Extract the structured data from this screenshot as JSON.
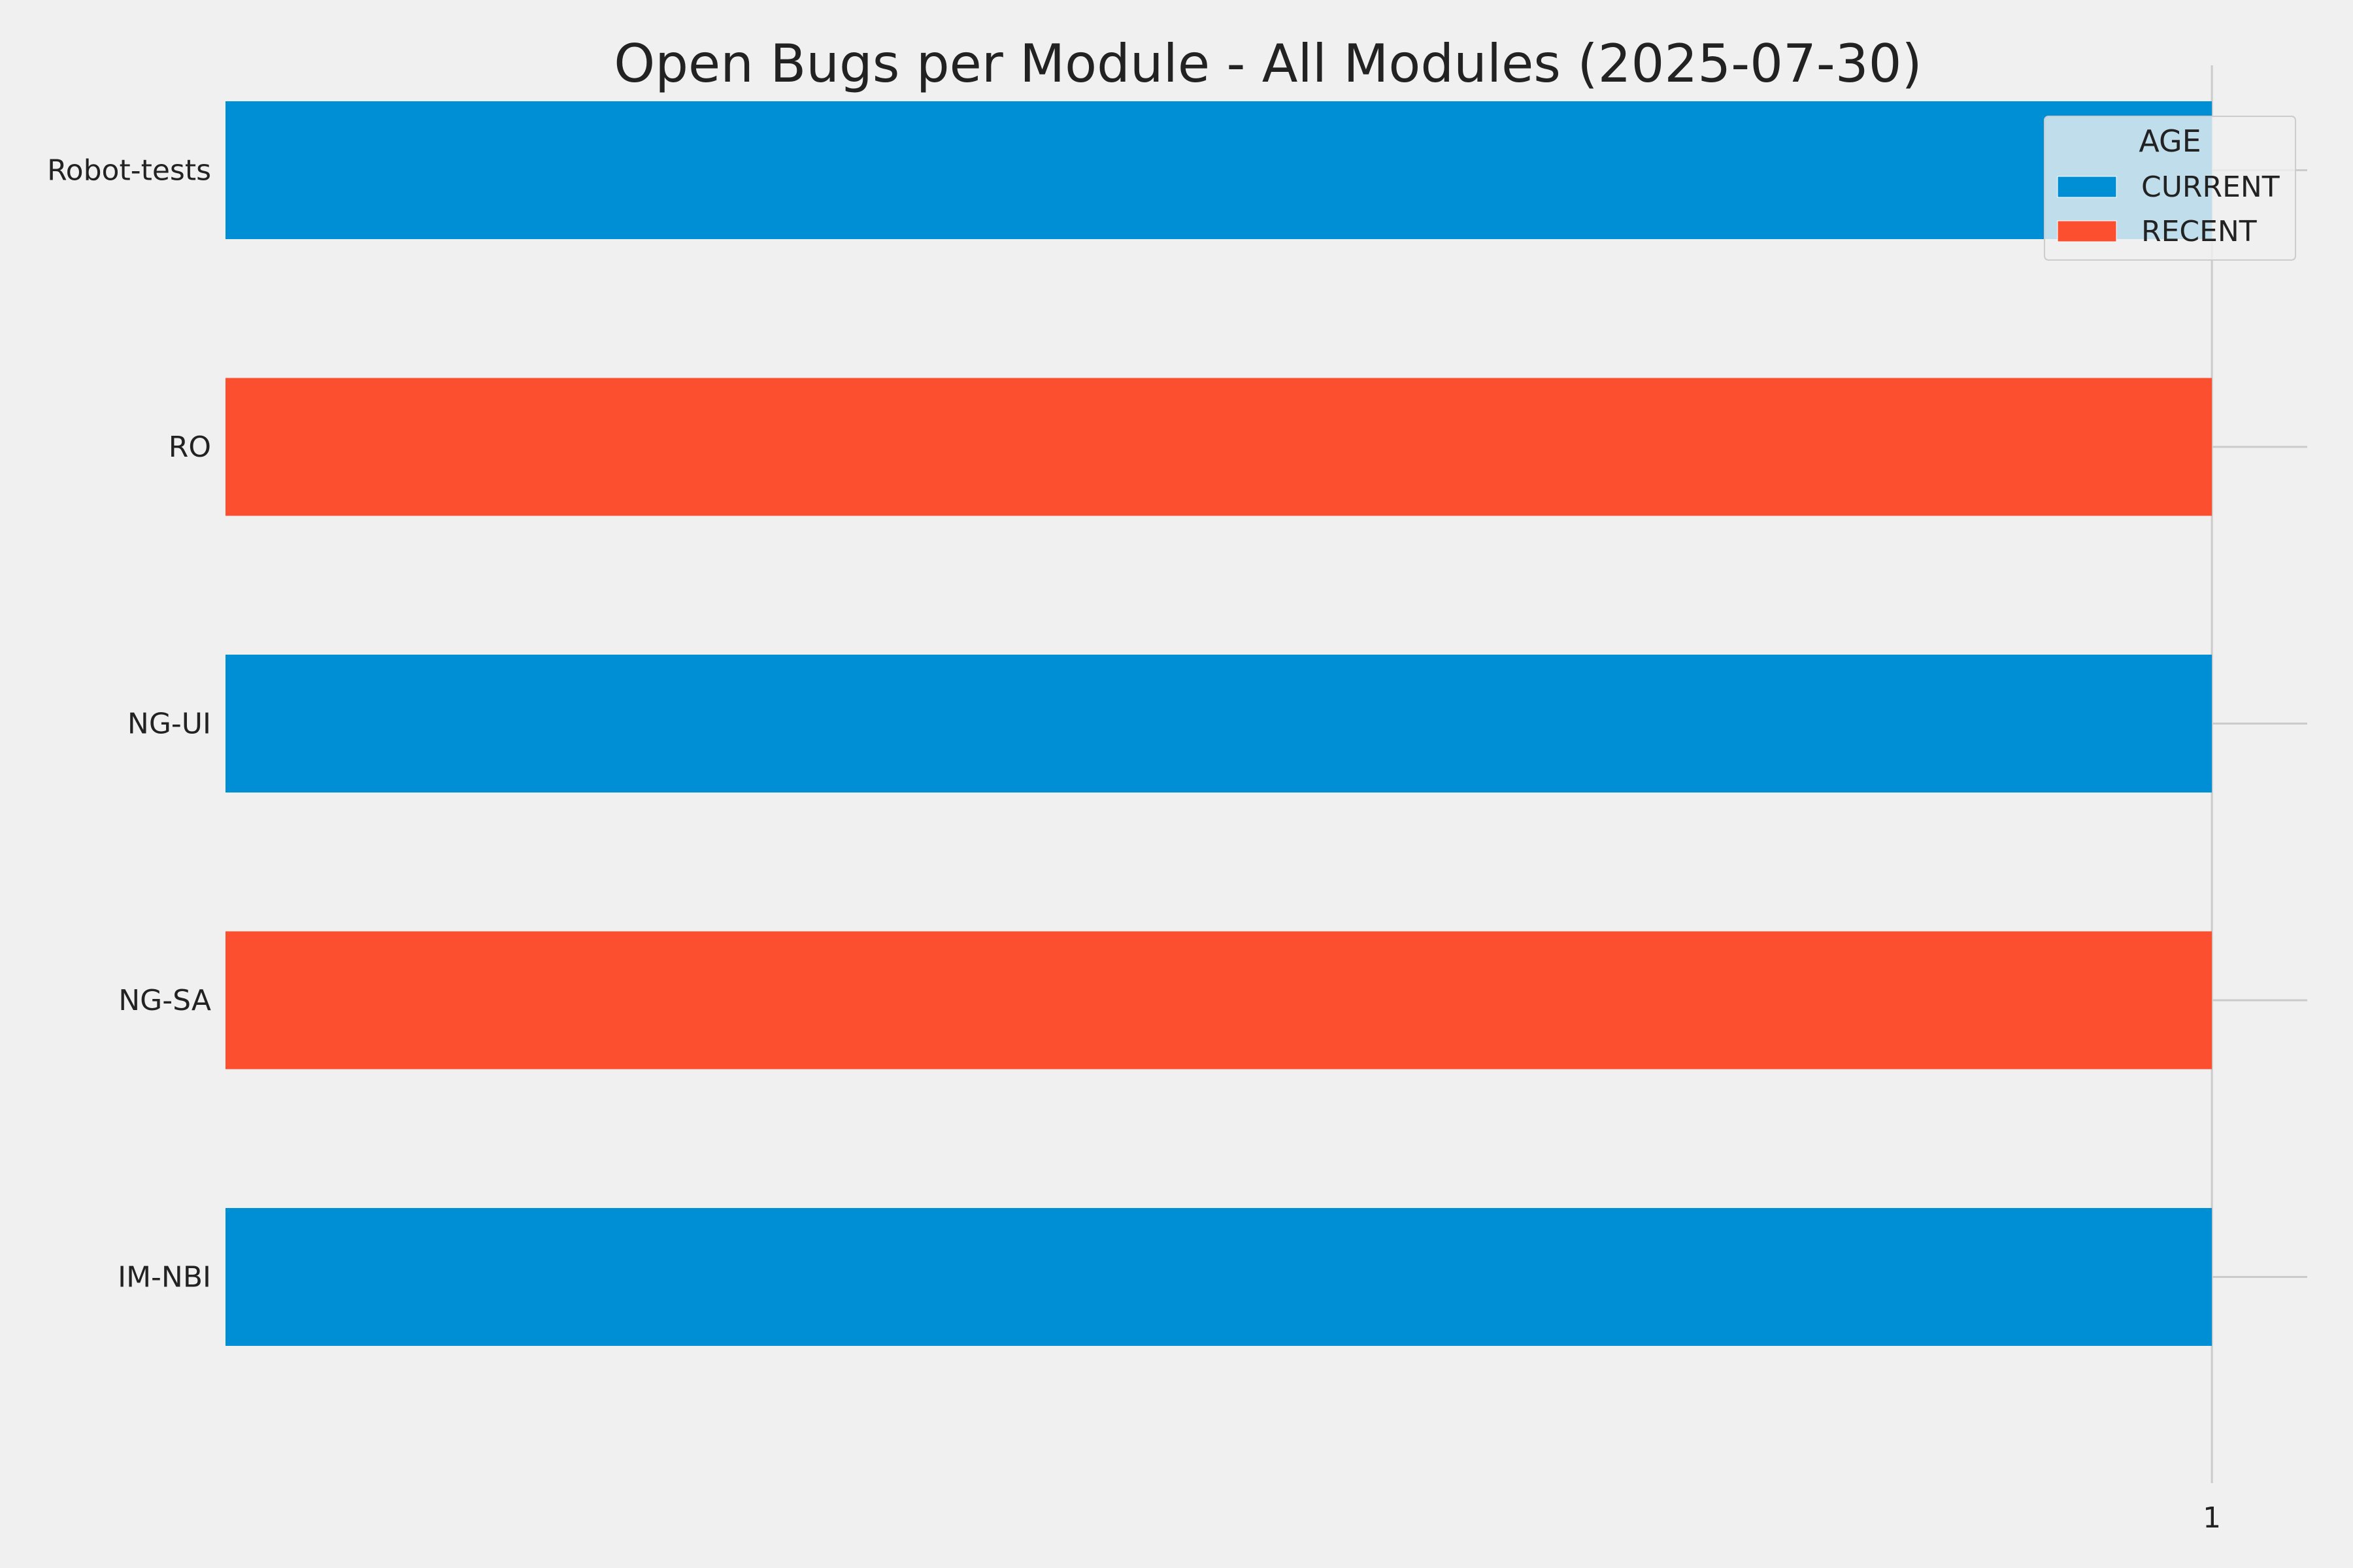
{
  "chart_data": {
    "type": "bar",
    "orientation": "horizontal",
    "title": "Open Bugs per Module - All Modules (2025-07-30)",
    "xlabel": "",
    "ylabel": "",
    "categories": [
      "Robot-tests",
      "RO",
      "NG-UI",
      "NG-SA",
      "IM-NBI"
    ],
    "values": [
      1,
      1,
      1,
      1,
      1
    ],
    "bar_series": [
      "CURRENT",
      "RECENT",
      "CURRENT",
      "RECENT",
      "CURRENT"
    ],
    "series": [
      {
        "name": "CURRENT",
        "color": "#008fd5"
      },
      {
        "name": "RECENT",
        "color": "#fc4f30"
      }
    ],
    "xticks": [
      1
    ],
    "xlim": [
      0,
      1.048
    ],
    "grid": true,
    "legend": {
      "title": "AGE",
      "placement": "top-right"
    }
  },
  "colors": {
    "background": "#f0f0f0",
    "grid": "#cbcbcb",
    "text": "#222222"
  }
}
